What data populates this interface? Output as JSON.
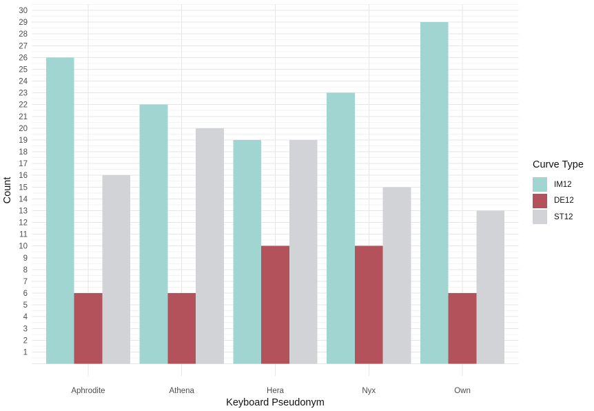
{
  "page": {
    "background": "#FFFFFF"
  },
  "chart_data": {
    "type": "bar",
    "title": "",
    "xlabel": "Keyboard Pseudonym",
    "ylabel": "Count",
    "categories": [
      "Aphrodite",
      "Athena",
      "Hera",
      "Nyx",
      "Own"
    ],
    "series": [
      {
        "name": "IM12",
        "color": "#A1D5D2",
        "values": [
          26,
          22,
          19,
          23,
          29
        ]
      },
      {
        "name": "DE12",
        "color": "#B4525B",
        "values": [
          6,
          6,
          10,
          10,
          6
        ]
      },
      {
        "name": "ST12",
        "color": "#D1D3D6",
        "values": [
          16,
          20,
          19,
          15,
          13
        ]
      }
    ],
    "ylim": [
      0,
      30
    ],
    "y_tick_step": 1,
    "y_minor_step": 0.5,
    "bar_group_width": 0.9,
    "legend": {
      "title": "Curve Type",
      "position": "right",
      "entries": [
        "IM12",
        "DE12",
        "ST12"
      ]
    },
    "grid": {
      "major": true,
      "minor": true
    },
    "style": {
      "axis_text_color": "#4D4D4D",
      "axis_title_color": "#111111",
      "grid_major_color": "#E6E6E6",
      "grid_minor_color": "#F3F3F3"
    }
  }
}
